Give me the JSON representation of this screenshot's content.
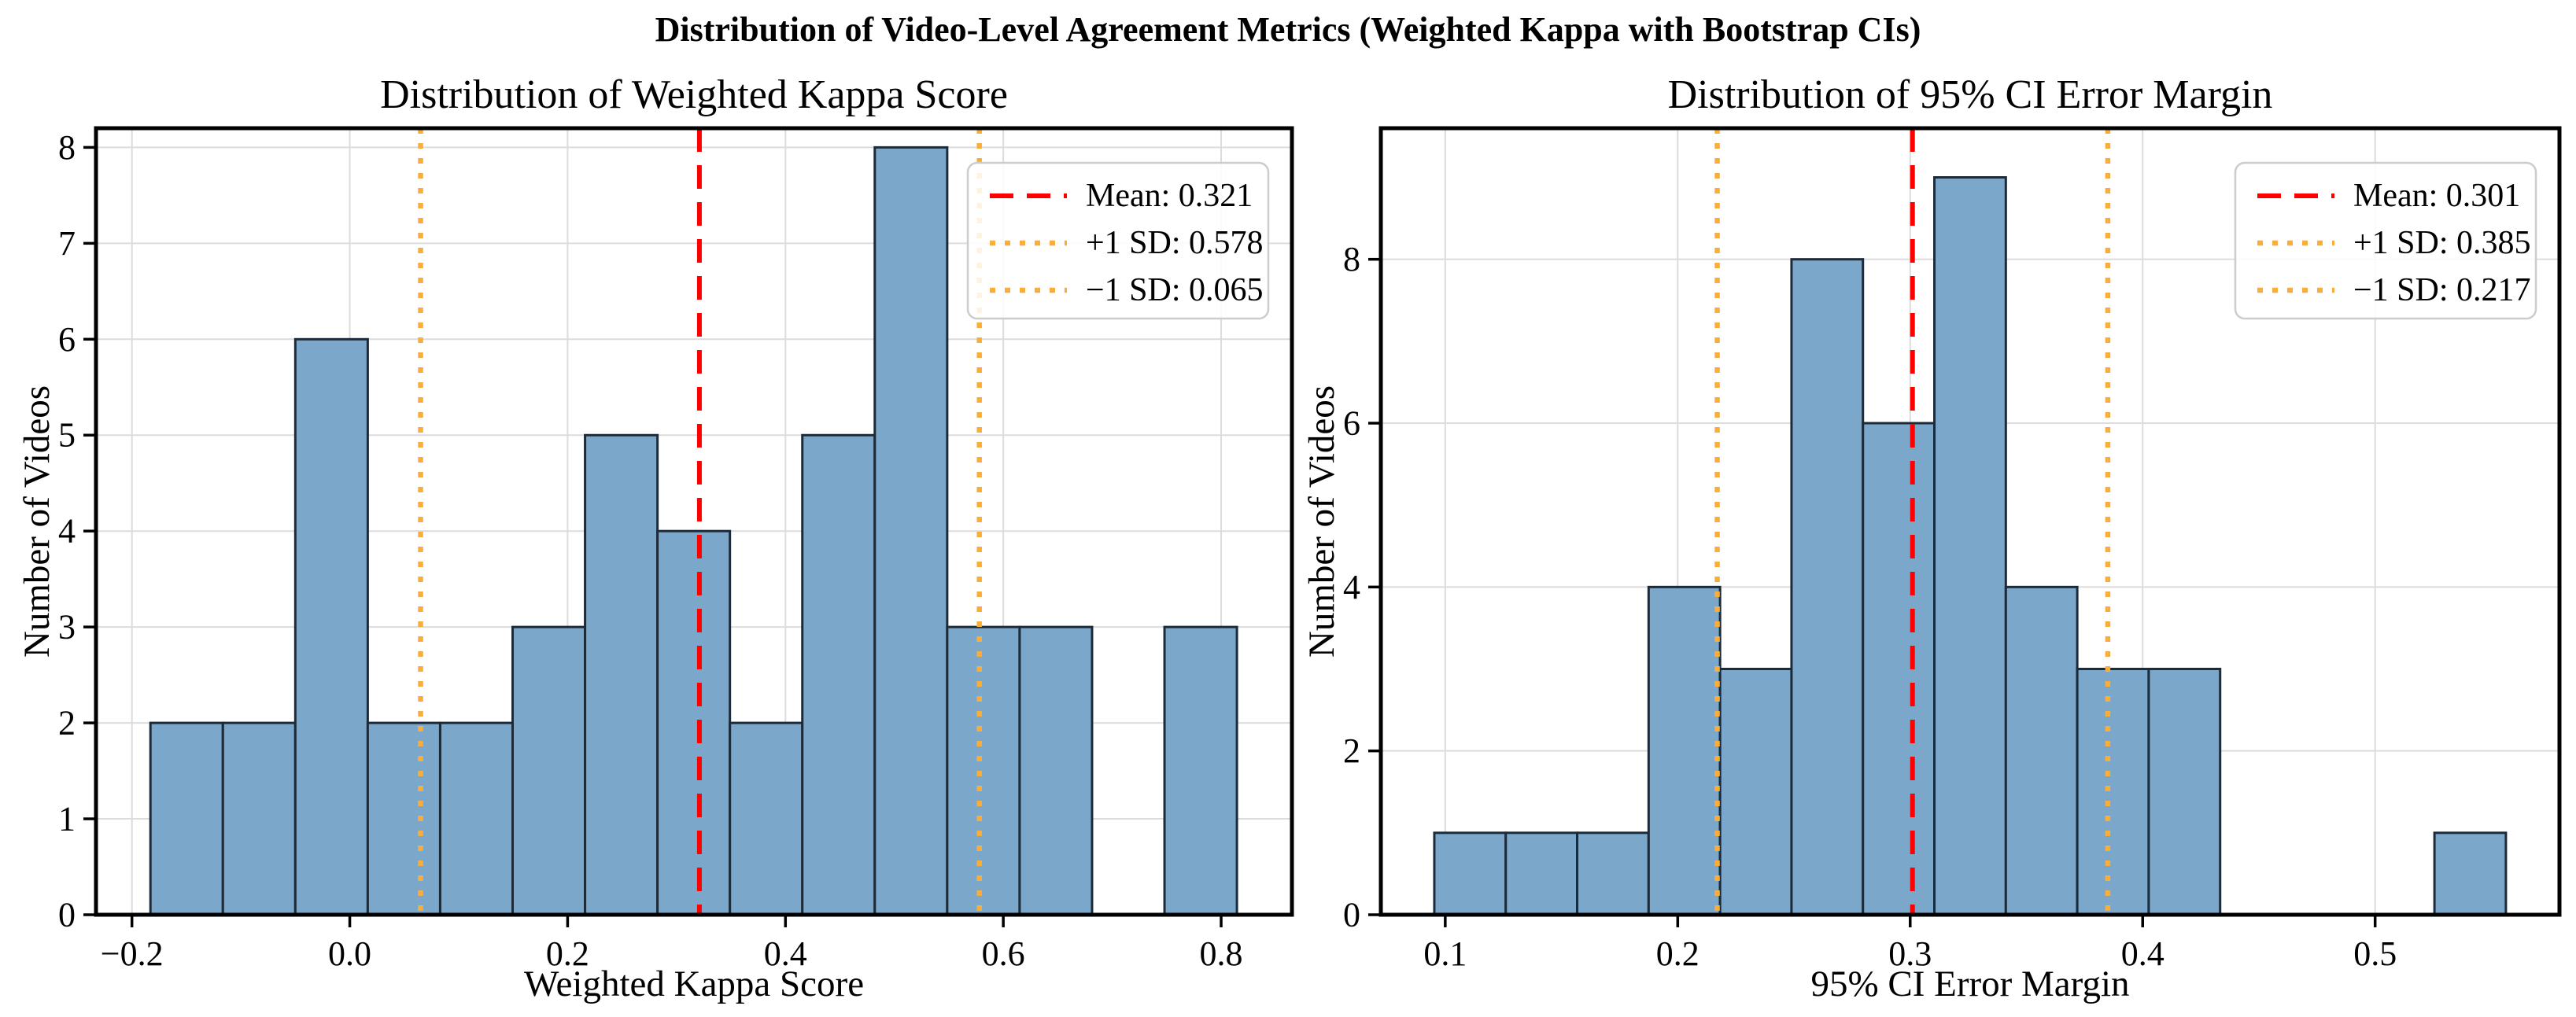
{
  "figure": {
    "title": "Distribution of Video-Level Agreement Metrics (Weighted Kappa with Bootstrap CIs)",
    "background_color": "#ffffff"
  },
  "colors": {
    "bar_fill": "#7BA7CA",
    "bar_edge": "#1C2B3A",
    "mean_line": "#FF0000",
    "sd_line": "#F9AE3B",
    "grid_line": "#DCDCDC",
    "axis_line": "#000000",
    "text": "#000000",
    "legend_border": "#CCCCCC",
    "legend_background": "rgba(255,255,255,0.85)"
  },
  "chart_data": [
    {
      "type": "bar",
      "title": "Distribution of Weighted Kappa Score",
      "xlabel": "Weighted Kappa Score",
      "ylabel": "Number of Videos",
      "bins": {
        "start": -0.183,
        "width": 0.0665
      },
      "counts": [
        2,
        2,
        6,
        2,
        2,
        3,
        5,
        4,
        2,
        5,
        8,
        3,
        3,
        0,
        3
      ],
      "xtick_values": [
        -0.2,
        0.0,
        0.2,
        0.4,
        0.6,
        0.8
      ],
      "xtick_labels": [
        "−0.2",
        "0.0",
        "0.2",
        "0.4",
        "0.6",
        "0.8"
      ],
      "ytick_values": [
        0,
        1,
        2,
        3,
        4,
        5,
        6,
        7,
        8
      ],
      "ytick_labels": [
        "0",
        "1",
        "2",
        "3",
        "4",
        "5",
        "6",
        "7",
        "8"
      ],
      "xlim": [
        -0.233,
        0.865
      ],
      "ylim": [
        0,
        8.2
      ],
      "grid": true,
      "legend_position": "upper right",
      "stat_lines": [
        {
          "value": 0.321,
          "style": "dashed",
          "color": "#FF0000",
          "label": "Mean: 0.321"
        },
        {
          "value": 0.578,
          "style": "dotted",
          "color": "#F9AE3B",
          "label": "+1 SD: 0.578"
        },
        {
          "value": 0.065,
          "style": "dotted",
          "color": "#F9AE3B",
          "label": "−1 SD: 0.065"
        }
      ]
    },
    {
      "type": "bar",
      "title": "Distribution of 95% CI Error Margin",
      "xlabel": "95% CI Error Margin",
      "ylabel": "Number of Videos",
      "bins": {
        "start": 0.0953,
        "width": 0.03073
      },
      "counts": [
        1,
        1,
        1,
        4,
        3,
        8,
        6,
        9,
        4,
        3,
        3,
        0,
        0,
        0,
        1
      ],
      "xtick_values": [
        0.1,
        0.2,
        0.3,
        0.4,
        0.5
      ],
      "xtick_labels": [
        "0.1",
        "0.2",
        "0.3",
        "0.4",
        "0.5"
      ],
      "ytick_values": [
        0,
        2,
        4,
        6,
        8
      ],
      "ytick_labels": [
        "0",
        "2",
        "4",
        "6",
        "8"
      ],
      "xlim": [
        0.0723,
        0.5793
      ],
      "ylim": [
        0,
        9.6
      ],
      "grid": true,
      "legend_position": "upper right",
      "stat_lines": [
        {
          "value": 0.301,
          "style": "dashed",
          "color": "#FF0000",
          "label": "Mean: 0.301"
        },
        {
          "value": 0.385,
          "style": "dotted",
          "color": "#F9AE3B",
          "label": "+1 SD: 0.385"
        },
        {
          "value": 0.217,
          "style": "dotted",
          "color": "#F9AE3B",
          "label": "−1 SD: 0.217"
        }
      ]
    }
  ]
}
